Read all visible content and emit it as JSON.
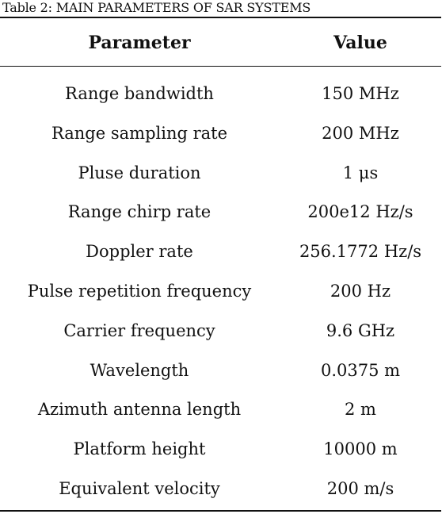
{
  "caption": "Table 2: MAIN PARAMETERS OF SAR SYSTEMS",
  "table": {
    "headers": [
      "Parameter",
      "Value"
    ],
    "rows": [
      [
        "Range bandwidth",
        "150 MHz"
      ],
      [
        "Range sampling rate",
        "200 MHz"
      ],
      [
        "Pluse duration",
        "1 μs"
      ],
      [
        "Range chirp rate",
        "200e12 Hz/s"
      ],
      [
        "Doppler rate",
        "256.1772 Hz/s"
      ],
      [
        "Pulse repetition frequency",
        "200 Hz"
      ],
      [
        "Carrier frequency",
        "9.6 GHz"
      ],
      [
        "Wavelength",
        "0.0375 m"
      ],
      [
        "Azimuth antenna length",
        "2 m"
      ],
      [
        "Platform height",
        "10000 m"
      ],
      [
        "Equivalent velocity",
        "200 m/s"
      ]
    ]
  }
}
